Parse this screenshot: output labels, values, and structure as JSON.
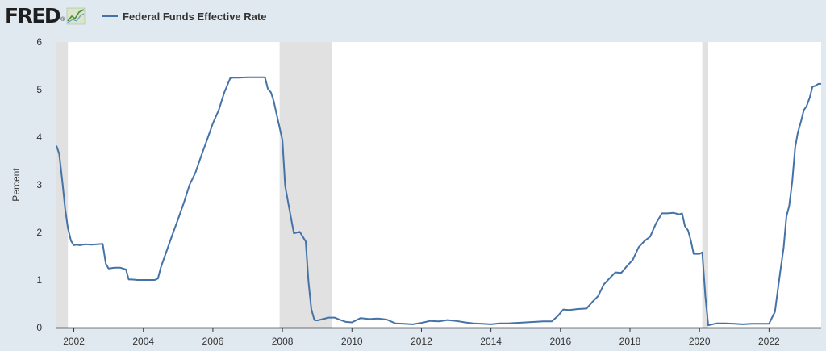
{
  "header": {
    "logo_text": "FRED",
    "logo_mark": "®",
    "logo_icon": "line-graph-icon",
    "legend_label": "Federal Funds Effective Rate",
    "legend_color": "#4572a7"
  },
  "colors": {
    "background": "#e1e9f0",
    "plot_background": "#ffffff",
    "recession_shade": "#e1e1e1",
    "line": "#4572a7"
  },
  "chart_data": {
    "type": "line",
    "title": "",
    "xlabel": "",
    "ylabel": "Percent",
    "xlim": [
      2001.5,
      2023.5
    ],
    "ylim": [
      0,
      6
    ],
    "x_ticks": [
      2002,
      2004,
      2006,
      2008,
      2010,
      2012,
      2014,
      2016,
      2018,
      2020,
      2022
    ],
    "x_tick_labels": [
      "2002",
      "2004",
      "2006",
      "2008",
      "2010",
      "2012",
      "2014",
      "2016",
      "2018",
      "2020",
      "2022"
    ],
    "y_ticks": [
      0,
      1,
      2,
      3,
      4,
      5,
      6
    ],
    "y_tick_labels": [
      "0",
      "1",
      "2",
      "3",
      "4",
      "5",
      "6"
    ],
    "grid": false,
    "legend_position": "top-left",
    "recessions": [
      {
        "start": 2001.0,
        "end": 2001.83
      },
      {
        "start": 2007.92,
        "end": 2009.42
      },
      {
        "start": 2020.08,
        "end": 2020.25
      }
    ],
    "series": [
      {
        "name": "Federal Funds Effective Rate",
        "x": [
          2001.5,
          2001.58,
          2001.67,
          2001.75,
          2001.83,
          2001.92,
          2002.0,
          2002.08,
          2002.17,
          2002.33,
          2002.5,
          2002.67,
          2002.83,
          2002.92,
          2003.0,
          2003.17,
          2003.33,
          2003.5,
          2003.58,
          2003.67,
          2003.83,
          2004.0,
          2004.17,
          2004.33,
          2004.42,
          2004.5,
          2004.67,
          2004.83,
          2005.0,
          2005.17,
          2005.33,
          2005.5,
          2005.67,
          2005.83,
          2006.0,
          2006.17,
          2006.33,
          2006.5,
          2006.58,
          2006.75,
          2007.0,
          2007.25,
          2007.5,
          2007.58,
          2007.67,
          2007.75,
          2007.83,
          2008.0,
          2008.08,
          2008.17,
          2008.33,
          2008.5,
          2008.67,
          2008.75,
          2008.83,
          2008.92,
          2009.0,
          2009.17,
          2009.33,
          2009.5,
          2009.67,
          2009.83,
          2010.0,
          2010.25,
          2010.5,
          2010.75,
          2011.0,
          2011.25,
          2011.5,
          2011.75,
          2012.0,
          2012.25,
          2012.5,
          2012.75,
          2013.0,
          2013.25,
          2013.5,
          2013.75,
          2014.0,
          2014.25,
          2014.5,
          2014.75,
          2015.0,
          2015.25,
          2015.5,
          2015.75,
          2015.92,
          2016.08,
          2016.25,
          2016.5,
          2016.75,
          2016.92,
          2017.08,
          2017.25,
          2017.42,
          2017.58,
          2017.75,
          2017.92,
          2018.08,
          2018.25,
          2018.42,
          2018.58,
          2018.75,
          2018.92,
          2019.08,
          2019.25,
          2019.42,
          2019.5,
          2019.58,
          2019.67,
          2019.75,
          2019.83,
          2019.92,
          2020.0,
          2020.08,
          2020.17,
          2020.25,
          2020.5,
          2020.75,
          2021.0,
          2021.25,
          2021.5,
          2021.75,
          2022.0,
          2022.08,
          2022.17,
          2022.25,
          2022.33,
          2022.42,
          2022.5,
          2022.58,
          2022.67,
          2022.75,
          2022.83,
          2022.92,
          2023.0,
          2023.08,
          2023.17,
          2023.25,
          2023.33,
          2023.42,
          2023.5
        ],
        "y": [
          3.82,
          3.65,
          3.07,
          2.49,
          2.09,
          1.82,
          1.73,
          1.74,
          1.73,
          1.75,
          1.74,
          1.75,
          1.76,
          1.34,
          1.24,
          1.26,
          1.26,
          1.22,
          1.01,
          1.01,
          1.0,
          1.0,
          1.0,
          1.0,
          1.03,
          1.26,
          1.61,
          1.94,
          2.28,
          2.63,
          3.0,
          3.26,
          3.62,
          3.94,
          4.29,
          4.57,
          4.94,
          5.24,
          5.25,
          5.25,
          5.26,
          5.26,
          5.26,
          5.02,
          4.94,
          4.76,
          4.49,
          3.94,
          2.98,
          2.61,
          1.98,
          2.01,
          1.81,
          0.97,
          0.39,
          0.16,
          0.15,
          0.18,
          0.21,
          0.21,
          0.16,
          0.12,
          0.11,
          0.2,
          0.18,
          0.19,
          0.17,
          0.09,
          0.08,
          0.07,
          0.1,
          0.14,
          0.13,
          0.16,
          0.14,
          0.11,
          0.09,
          0.08,
          0.07,
          0.09,
          0.09,
          0.1,
          0.11,
          0.12,
          0.13,
          0.13,
          0.24,
          0.38,
          0.37,
          0.39,
          0.4,
          0.54,
          0.66,
          0.91,
          1.04,
          1.16,
          1.15,
          1.3,
          1.42,
          1.69,
          1.82,
          1.91,
          2.19,
          2.4,
          2.4,
          2.41,
          2.38,
          2.4,
          2.13,
          2.04,
          1.83,
          1.55,
          1.55,
          1.55,
          1.58,
          0.65,
          0.05,
          0.09,
          0.09,
          0.08,
          0.07,
          0.08,
          0.08,
          0.08,
          0.2,
          0.33,
          0.77,
          1.21,
          1.68,
          2.33,
          2.56,
          3.08,
          3.78,
          4.1,
          4.33,
          4.57,
          4.65,
          4.83,
          5.06,
          5.08,
          5.12,
          5.12
        ]
      }
    ]
  }
}
